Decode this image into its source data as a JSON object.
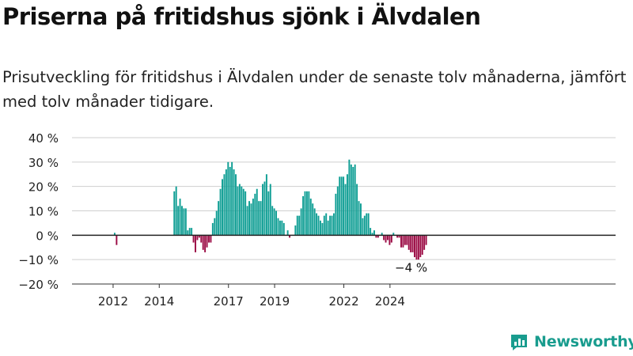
{
  "header": {
    "title": "Priserna på fritidshus sjönk i Älvdalen",
    "subtitle": "Prisutveckling för fritidshus i Älvdalen under de senaste tolv månaderna, jämfört med tolv månader tidigare."
  },
  "brand": {
    "name": "Newsworthy",
    "icon": "newsworthy-logo-icon",
    "color": "#199c8e"
  },
  "colors": {
    "positive": "#0f9e94",
    "negative": "#9b0b44",
    "grid": "#cfcfcf",
    "zero_line": "#222222"
  },
  "chart_data": {
    "type": "bar",
    "ylim": [
      -20,
      40
    ],
    "y_ticks": [
      -20,
      -10,
      0,
      10,
      20,
      30,
      40
    ],
    "y_tick_labels": [
      "−20 %",
      "−10 %",
      "0 %",
      "10 %",
      "20 %",
      "30 %",
      "40 %"
    ],
    "x_ticks": [
      {
        "label": "2012",
        "month_index": 11
      },
      {
        "label": "2014",
        "month_index": 35
      },
      {
        "label": "2017",
        "month_index": 71
      },
      {
        "label": "2019",
        "month_index": 95
      },
      {
        "label": "2022",
        "month_index": 131
      },
      {
        "label": "2024",
        "month_index": 155
      }
    ],
    "x_start": "2011-01",
    "grid": true,
    "annotation": {
      "text": "−4 %",
      "month_index": 166,
      "value": -4
    },
    "values": [
      0,
      0,
      0,
      0,
      0,
      0,
      0,
      0,
      0,
      0,
      0,
      0,
      1,
      -4,
      0,
      0,
      0,
      0,
      0,
      0,
      0,
      0,
      0,
      0,
      0,
      0,
      0,
      0,
      0,
      0,
      0,
      0,
      0,
      0,
      0,
      0,
      0,
      0,
      0,
      0,
      0,
      0,
      0,
      18,
      20,
      12,
      15,
      12,
      11,
      11,
      2,
      3,
      3,
      -3,
      -7,
      -2,
      -1,
      -3,
      -6,
      -7,
      -5,
      -3,
      -3,
      5,
      7,
      10,
      14,
      19,
      23,
      25,
      27,
      30,
      28,
      30,
      27,
      25,
      20,
      21,
      20,
      19,
      18,
      12,
      14,
      13,
      15,
      17,
      19,
      14,
      14,
      21,
      22,
      25,
      18,
      21,
      12,
      11,
      10,
      7,
      6,
      6,
      5,
      0,
      2,
      -1,
      0,
      0,
      4,
      8,
      8,
      11,
      16,
      18,
      18,
      18,
      15,
      13,
      11,
      9,
      8,
      6,
      5,
      8,
      9,
      6,
      8,
      8,
      9,
      17,
      20,
      24,
      24,
      24,
      21,
      25,
      31,
      29,
      28,
      29,
      21,
      14,
      13,
      7,
      8,
      9,
      9,
      3,
      1,
      2,
      -1,
      -1,
      0,
      1,
      -2,
      -3,
      -2,
      -4,
      -3,
      1,
      0,
      -1,
      -1,
      -5,
      -5,
      -4,
      -4,
      -6,
      -7,
      -7,
      -9,
      -10,
      -10,
      -9,
      -8,
      -6,
      -4
    ]
  }
}
